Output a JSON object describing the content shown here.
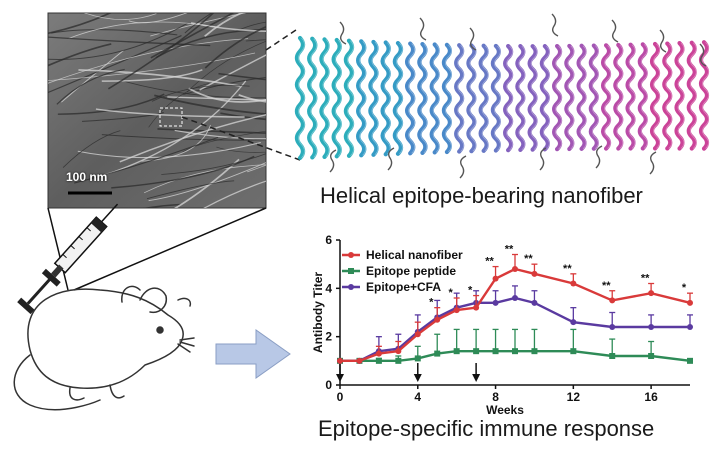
{
  "micrograph": {
    "scale_label": "100 nm"
  },
  "captions": {
    "nanofiber": "Helical epitope-bearing nanofiber",
    "immune": "Epitope-specific immune response"
  },
  "colors": {
    "helical_nanofiber": "#d93a3a",
    "epitope_peptide": "#2e8b57",
    "epitope_cfa": "#5a3aa0",
    "arrow_fill": "#b8c8e6"
  },
  "chart_data": {
    "type": "line",
    "xlabel": "Weeks",
    "ylabel": "Antibody Titer",
    "xlim": [
      0,
      18
    ],
    "ylim": [
      0,
      6
    ],
    "x_ticks": [
      0,
      4,
      8,
      12,
      16
    ],
    "y_ticks": [
      0,
      2,
      4,
      6
    ],
    "legend_placement": "top-left",
    "immunization_arrows_weeks": [
      0,
      4,
      7
    ],
    "series": [
      {
        "name": "Helical nanofiber",
        "x": [
          0,
          1,
          2,
          3,
          4,
          5,
          6,
          7,
          8,
          9,
          10,
          12,
          14,
          16,
          18
        ],
        "y": [
          1.0,
          1.0,
          1.3,
          1.4,
          2.1,
          2.7,
          3.1,
          3.2,
          4.4,
          4.8,
          4.6,
          4.2,
          3.5,
          3.8,
          3.4
        ],
        "err": [
          0,
          0,
          0.3,
          0.4,
          0.5,
          0.5,
          0.5,
          0.5,
          0.5,
          0.6,
          0.4,
          0.4,
          0.4,
          0.4,
          0.4
        ],
        "sig": [
          "",
          "",
          "",
          "",
          "",
          "*",
          "*",
          "*",
          "**",
          "**",
          "**",
          "**",
          "**",
          "**",
          "*"
        ]
      },
      {
        "name": "Epitope peptide",
        "x": [
          0,
          1,
          2,
          3,
          4,
          5,
          6,
          7,
          8,
          9,
          10,
          12,
          14,
          16,
          18
        ],
        "y": [
          1.0,
          1.0,
          1.0,
          1.0,
          1.1,
          1.3,
          1.4,
          1.4,
          1.4,
          1.4,
          1.4,
          1.4,
          1.2,
          1.2,
          1.0
        ],
        "err": [
          0,
          0,
          0.1,
          0.2,
          0.5,
          0.8,
          0.9,
          0.9,
          0.9,
          0.9,
          0.9,
          0.9,
          0.7,
          0.6,
          0
        ],
        "sig": []
      },
      {
        "name": "Epitope+CFA",
        "x": [
          0,
          1,
          2,
          3,
          4,
          5,
          6,
          7,
          8,
          9,
          10,
          12,
          14,
          16,
          18
        ],
        "y": [
          1.0,
          1.0,
          1.4,
          1.5,
          2.2,
          2.8,
          3.2,
          3.4,
          3.4,
          3.6,
          3.4,
          2.6,
          2.4,
          2.4,
          2.4
        ],
        "err": [
          0,
          0,
          0.6,
          0.6,
          0.7,
          0.7,
          0.6,
          0.5,
          0.5,
          0.5,
          0.5,
          0.6,
          0.6,
          0.5,
          0.5
        ],
        "sig": []
      }
    ]
  }
}
